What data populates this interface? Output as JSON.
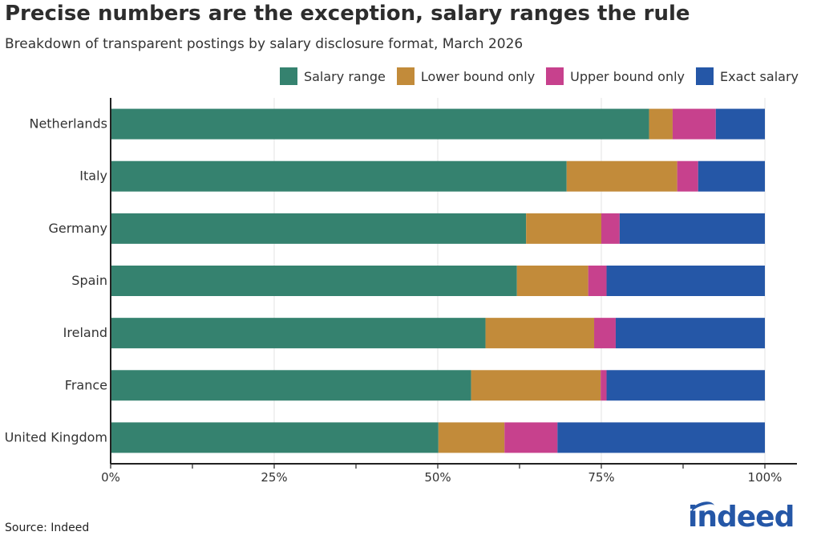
{
  "title": "Precise numbers are the exception, salary ranges the rule",
  "subtitle": "Breakdown of transparent postings by salary disclosure format, March 2026",
  "source": "Source: Indeed",
  "logo_text": "indeed",
  "colors": {
    "Salary range": "#35826f",
    "Lower bound only": "#c28b3a",
    "Upper bound only": "#c7418d",
    "Exact salary": "#2557a7"
  },
  "chart_data": {
    "type": "bar",
    "orientation": "horizontal",
    "stacked": true,
    "categories": [
      "Netherlands",
      "Italy",
      "Germany",
      "Spain",
      "Ireland",
      "France",
      "United Kingdom"
    ],
    "series": [
      {
        "name": "Salary range",
        "values": [
          82.3,
          69.7,
          63.5,
          62.1,
          57.3,
          55.1,
          50.1
        ]
      },
      {
        "name": "Lower bound only",
        "values": [
          3.6,
          16.9,
          11.5,
          10.9,
          16.6,
          19.8,
          10.1
        ]
      },
      {
        "name": "Upper bound only",
        "values": [
          6.6,
          3.2,
          2.8,
          2.8,
          3.3,
          0.9,
          8.1
        ]
      },
      {
        "name": "Exact salary",
        "values": [
          7.5,
          10.2,
          22.2,
          24.2,
          22.8,
          24.2,
          31.7
        ]
      }
    ],
    "xticks": [
      "0%",
      "25%",
      "50%",
      "75%",
      "100%"
    ],
    "xlim": [
      0,
      100
    ],
    "legend_position": "top-right",
    "grid": true
  }
}
